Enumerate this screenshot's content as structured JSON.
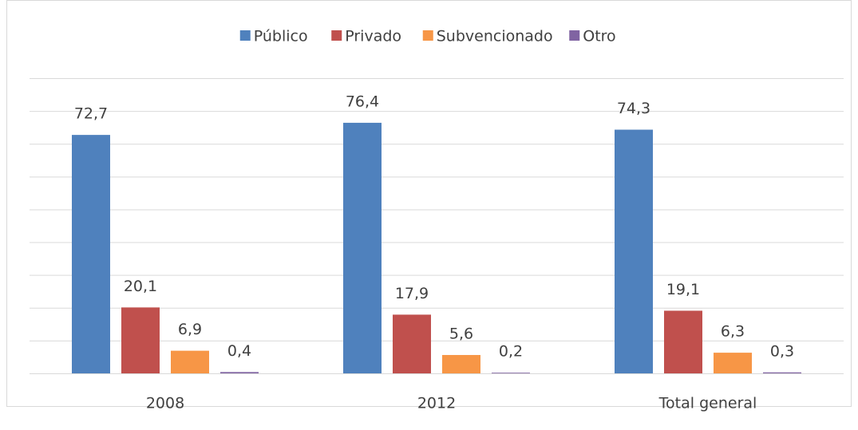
{
  "chart_data": {
    "type": "bar",
    "categories": [
      "2008",
      "2012",
      "Total general"
    ],
    "series": [
      {
        "name": "Público",
        "color": "#4f81bd",
        "values": [
          72.7,
          76.4,
          74.3
        ],
        "value_labels": [
          "72,7",
          "76,4",
          "74,3"
        ]
      },
      {
        "name": "Privado",
        "color": "#c0504d",
        "values": [
          20.1,
          17.9,
          19.1
        ],
        "value_labels": [
          "20,1",
          "17,9",
          "19,1"
        ]
      },
      {
        "name": "Subvencionado",
        "color": "#f79646",
        "values": [
          6.9,
          5.6,
          6.3
        ],
        "value_labels": [
          "6,9",
          "5,6",
          "6,3"
        ]
      },
      {
        "name": "Otro",
        "color": "#8064a2",
        "values": [
          0.4,
          0.2,
          0.3
        ],
        "value_labels": [
          "0,4",
          "0,2",
          "0,3"
        ]
      }
    ],
    "ylim": [
      0,
      90
    ],
    "yticks": [
      0,
      10,
      20,
      30,
      40,
      50,
      60,
      70,
      80,
      90
    ],
    "grid": true,
    "legend": "top"
  }
}
